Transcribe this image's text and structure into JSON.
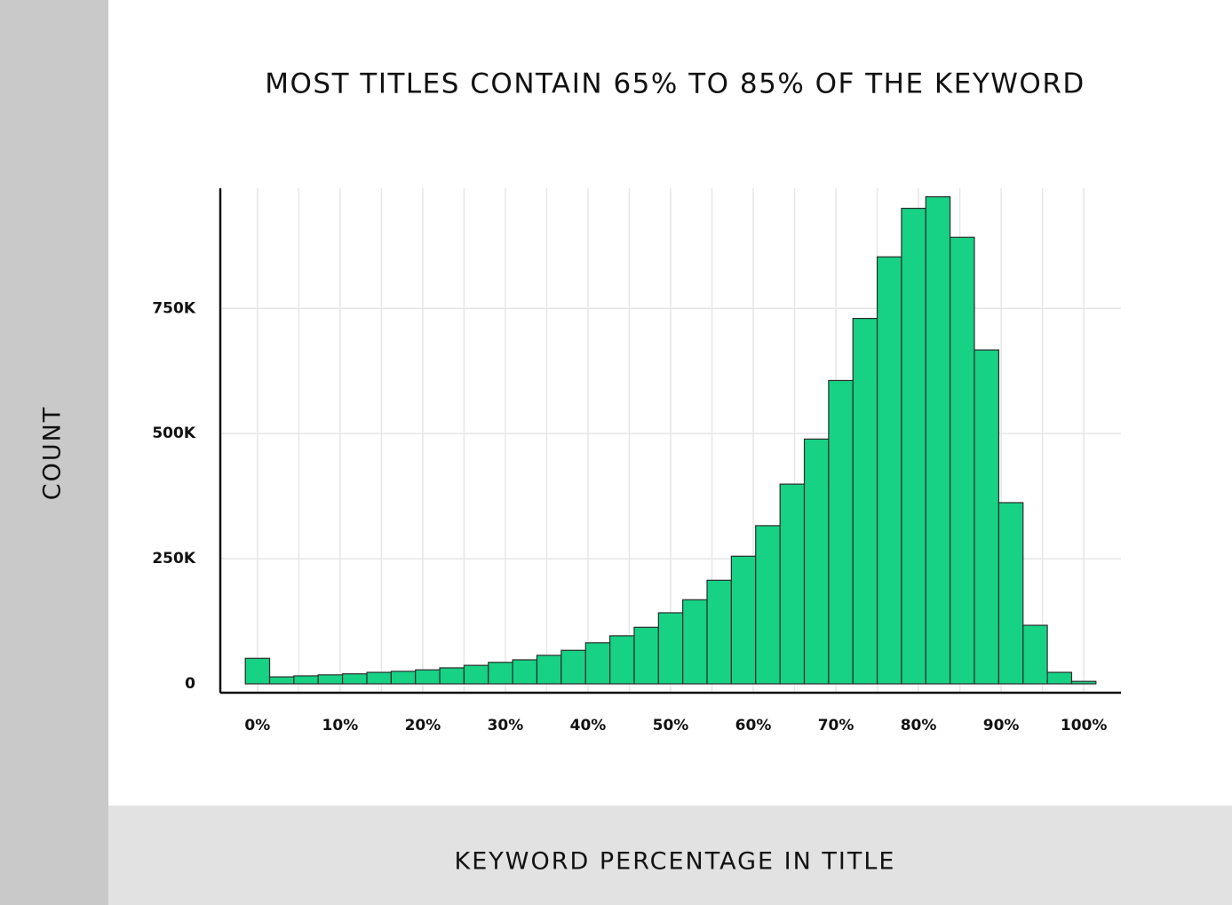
{
  "chart_data": {
    "type": "histogram",
    "title": "MOST TITLES CONTAIN 65% TO 85% OF THE KEYWORD",
    "x_label": "KEYWORD PERCENTAGE IN TITLE",
    "y_label": "COUNT",
    "bins": [
      -1.47,
      1.47,
      4.41,
      7.35,
      10.29,
      13.24,
      16.18,
      19.12,
      22.06,
      25.0,
      27.94,
      30.88,
      33.82,
      36.76,
      39.71,
      42.65,
      45.59,
      48.53,
      51.47,
      54.41,
      57.35,
      60.29,
      63.24,
      66.18,
      69.12,
      72.06,
      75.0,
      77.94,
      80.88,
      83.82,
      86.76,
      89.71,
      92.65,
      95.59,
      98.53,
      101.47
    ],
    "values": [
      51000,
      14000,
      16000,
      18000,
      20000,
      23000,
      25000,
      28000,
      32000,
      37000,
      43000,
      48000,
      57000,
      67000,
      82000,
      96000,
      113000,
      142000,
      168000,
      207000,
      255000,
      316000,
      399000,
      489000,
      606000,
      730000,
      853000,
      950000,
      973000,
      892000,
      667000,
      362000,
      117000,
      23000,
      5000
    ],
    "color": "#17d184",
    "xlim": [
      -4.5,
      104.5
    ],
    "ylim": [
      0,
      990000
    ],
    "xticks": [
      {
        "value": 0,
        "label": "0%"
      },
      {
        "value": 10,
        "label": "10%"
      },
      {
        "value": 20,
        "label": "20%"
      },
      {
        "value": 30,
        "label": "30%"
      },
      {
        "value": 40,
        "label": "40%"
      },
      {
        "value": 50,
        "label": "50%"
      },
      {
        "value": 60,
        "label": "60%"
      },
      {
        "value": 70,
        "label": "70%"
      },
      {
        "value": 80,
        "label": "80%"
      },
      {
        "value": 90,
        "label": "90%"
      },
      {
        "value": 100,
        "label": "100%"
      }
    ],
    "xgrid": [
      0,
      5,
      10,
      15,
      20,
      25,
      30,
      35,
      40,
      45,
      50,
      55,
      60,
      65,
      70,
      75,
      80,
      85,
      90,
      95,
      100
    ],
    "yticks": [
      0,
      {
        "value": 250000,
        "label": "250K"
      },
      {
        "value": 500000,
        "label": "500K"
      },
      {
        "value": 750000,
        "label": "750K"
      }
    ],
    "grid": true
  }
}
